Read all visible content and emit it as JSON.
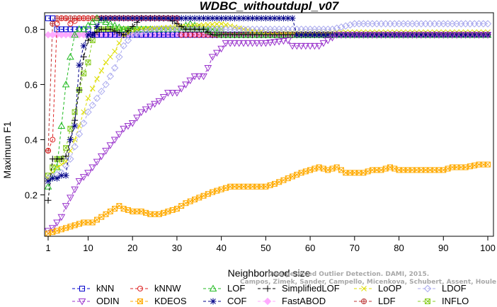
{
  "chart_data": {
    "type": "line",
    "title": "WDBC_withoutdupl_v07",
    "xlabel": "Neighborhood size",
    "ylabel": "Maximum F1",
    "xlim": [
      1,
      100
    ],
    "ylim": [
      0.05,
      0.86
    ],
    "xticks": [
      1,
      10,
      20,
      30,
      40,
      50,
      60,
      70,
      80,
      90,
      100
    ],
    "yticks": [
      0.2,
      0.4,
      0.6,
      0.8
    ],
    "watermark": [
      "Unsupervised Outlier Detection. DAMI, 2015.",
      "Campos, Zimek, Sander, Campello, Micenkova, Schubert, Assent, Houle"
    ],
    "series": [
      {
        "name": "kNN",
        "color": "#0000cc",
        "marker": "square",
        "points": [
          [
            1,
            0.84
          ],
          [
            2,
            0.84
          ],
          [
            3,
            0.8
          ],
          [
            10,
            0.8
          ],
          [
            11,
            0.78
          ],
          [
            100,
            0.78
          ]
        ]
      },
      {
        "name": "kNNW",
        "color": "#dd2222",
        "marker": "circle",
        "points": [
          [
            1,
            0.36
          ],
          [
            2,
            0.4
          ],
          [
            3,
            0.82
          ],
          [
            4,
            0.84
          ],
          [
            5,
            0.84
          ],
          [
            6,
            0.82
          ],
          [
            8,
            0.84
          ],
          [
            30,
            0.84
          ],
          [
            31,
            0.78
          ],
          [
            100,
            0.78
          ]
        ]
      },
      {
        "name": "LOF",
        "color": "#22bb22",
        "marker": "triangle",
        "points": [
          [
            1,
            0.23
          ],
          [
            2,
            0.27
          ],
          [
            3,
            0.3
          ],
          [
            4,
            0.45
          ],
          [
            5,
            0.6
          ],
          [
            6,
            0.7
          ],
          [
            7,
            0.78
          ],
          [
            8,
            0.8
          ],
          [
            9,
            0.8
          ],
          [
            12,
            0.84
          ],
          [
            15,
            0.82
          ],
          [
            18,
            0.8
          ],
          [
            30,
            0.8
          ],
          [
            33,
            0.82
          ],
          [
            36,
            0.8
          ],
          [
            40,
            0.78
          ],
          [
            100,
            0.78
          ]
        ]
      },
      {
        "name": "SimplifiedLOF",
        "color": "#000000",
        "marker": "plus",
        "points": [
          [
            1,
            0.18
          ],
          [
            2,
            0.33
          ],
          [
            3,
            0.33
          ],
          [
            4,
            0.33
          ],
          [
            5,
            0.34
          ],
          [
            6,
            0.4
          ],
          [
            7,
            0.47
          ],
          [
            8,
            0.58
          ],
          [
            9,
            0.7
          ],
          [
            10,
            0.76
          ],
          [
            11,
            0.78
          ],
          [
            13,
            0.8
          ],
          [
            15,
            0.8
          ],
          [
            18,
            0.78
          ],
          [
            22,
            0.84
          ],
          [
            28,
            0.84
          ],
          [
            32,
            0.8
          ],
          [
            36,
            0.8
          ],
          [
            38,
            0.78
          ],
          [
            100,
            0.78
          ]
        ]
      },
      {
        "name": "LoOP",
        "color": "#dddd00",
        "marker": "x",
        "points": [
          [
            1,
            0.26
          ],
          [
            3,
            0.3
          ],
          [
            5,
            0.32
          ],
          [
            7,
            0.4
          ],
          [
            9,
            0.5
          ],
          [
            10,
            0.55
          ],
          [
            12,
            0.62
          ],
          [
            14,
            0.68
          ],
          [
            16,
            0.72
          ],
          [
            18,
            0.78
          ],
          [
            22,
            0.8
          ],
          [
            40,
            0.82
          ],
          [
            45,
            0.8
          ],
          [
            50,
            0.79
          ],
          [
            100,
            0.79
          ]
        ]
      },
      {
        "name": "LDOF",
        "color": "#aaaaee",
        "marker": "diamond",
        "points": [
          [
            1,
            0.26
          ],
          [
            4,
            0.28
          ],
          [
            6,
            0.33
          ],
          [
            8,
            0.42
          ],
          [
            10,
            0.5
          ],
          [
            12,
            0.55
          ],
          [
            14,
            0.6
          ],
          [
            16,
            0.66
          ],
          [
            18,
            0.74
          ],
          [
            20,
            0.78
          ],
          [
            25,
            0.8
          ],
          [
            35,
            0.8
          ],
          [
            45,
            0.8
          ],
          [
            55,
            0.8
          ],
          [
            60,
            0.8
          ],
          [
            65,
            0.8
          ],
          [
            70,
            0.82
          ],
          [
            80,
            0.82
          ],
          [
            90,
            0.82
          ],
          [
            100,
            0.82
          ]
        ]
      },
      {
        "name": "ODIN",
        "color": "#9933cc",
        "marker": "triangle-down",
        "points": [
          [
            1,
            0.07
          ],
          [
            2,
            0.08
          ],
          [
            3,
            0.1
          ],
          [
            4,
            0.12
          ],
          [
            5,
            0.16
          ],
          [
            6,
            0.19
          ],
          [
            7,
            0.22
          ],
          [
            8,
            0.25
          ],
          [
            10,
            0.28
          ],
          [
            12,
            0.32
          ],
          [
            14,
            0.36
          ],
          [
            16,
            0.4
          ],
          [
            18,
            0.44
          ],
          [
            20,
            0.46
          ],
          [
            22,
            0.5
          ],
          [
            24,
            0.52
          ],
          [
            26,
            0.54
          ],
          [
            28,
            0.57
          ],
          [
            30,
            0.57
          ],
          [
            32,
            0.6
          ],
          [
            34,
            0.63
          ],
          [
            36,
            0.63
          ],
          [
            37,
            0.66
          ],
          [
            38,
            0.7
          ],
          [
            40,
            0.73
          ],
          [
            41,
            0.75
          ],
          [
            50,
            0.75
          ],
          [
            55,
            0.76
          ],
          [
            56,
            0.74
          ],
          [
            62,
            0.74
          ],
          [
            64,
            0.76
          ],
          [
            66,
            0.78
          ],
          [
            100,
            0.78
          ]
        ]
      },
      {
        "name": "KDEOS",
        "color": "#ffaa00",
        "marker": "square-x",
        "points": [
          [
            1,
            0.06
          ],
          [
            3,
            0.07
          ],
          [
            5,
            0.08
          ],
          [
            7,
            0.09
          ],
          [
            9,
            0.1
          ],
          [
            11,
            0.1
          ],
          [
            13,
            0.12
          ],
          [
            15,
            0.14
          ],
          [
            17,
            0.16
          ],
          [
            18,
            0.15
          ],
          [
            20,
            0.14
          ],
          [
            22,
            0.14
          ],
          [
            24,
            0.13
          ],
          [
            26,
            0.13
          ],
          [
            28,
            0.14
          ],
          [
            30,
            0.15
          ],
          [
            32,
            0.17
          ],
          [
            35,
            0.19
          ],
          [
            38,
            0.21
          ],
          [
            40,
            0.22
          ],
          [
            42,
            0.23
          ],
          [
            45,
            0.23
          ],
          [
            50,
            0.23
          ],
          [
            52,
            0.24
          ],
          [
            55,
            0.26
          ],
          [
            58,
            0.28
          ],
          [
            60,
            0.29
          ],
          [
            62,
            0.3
          ],
          [
            64,
            0.29
          ],
          [
            66,
            0.3
          ],
          [
            68,
            0.28
          ],
          [
            70,
            0.28
          ],
          [
            72,
            0.28
          ],
          [
            74,
            0.29
          ],
          [
            76,
            0.29
          ],
          [
            78,
            0.3
          ],
          [
            80,
            0.29
          ],
          [
            82,
            0.29
          ],
          [
            85,
            0.29
          ],
          [
            88,
            0.29
          ],
          [
            90,
            0.29
          ],
          [
            92,
            0.3
          ],
          [
            95,
            0.3
          ],
          [
            98,
            0.31
          ],
          [
            100,
            0.31
          ]
        ]
      },
      {
        "name": "COF",
        "color": "#000088",
        "marker": "asterisk",
        "points": [
          [
            1,
            0.25
          ],
          [
            2,
            0.26
          ],
          [
            3,
            0.26
          ],
          [
            4,
            0.27
          ],
          [
            5,
            0.27
          ],
          [
            6,
            0.4
          ],
          [
            7,
            0.45
          ],
          [
            8,
            0.67
          ],
          [
            9,
            0.74
          ],
          [
            10,
            0.78
          ],
          [
            11,
            0.78
          ],
          [
            13,
            0.84
          ],
          [
            20,
            0.84
          ],
          [
            25,
            0.84
          ],
          [
            30,
            0.84
          ],
          [
            40,
            0.84
          ],
          [
            50,
            0.84
          ],
          [
            56,
            0.84
          ],
          [
            57,
            0.78
          ],
          [
            100,
            0.78
          ]
        ]
      },
      {
        "name": "FastABOD",
        "color": "#ffaaff",
        "marker": "diamond-filled",
        "points": [
          [
            1,
            0.78
          ],
          [
            100,
            0.78
          ]
        ]
      },
      {
        "name": "LDF",
        "color": "#bb3333",
        "marker": "circle-plus",
        "points": [
          [
            1,
            0.36
          ],
          [
            2,
            0.82
          ],
          [
            3,
            0.84
          ],
          [
            4,
            0.84
          ],
          [
            5,
            0.84
          ],
          [
            30,
            0.84
          ],
          [
            31,
            0.78
          ],
          [
            100,
            0.78
          ]
        ]
      },
      {
        "name": "INFLO",
        "color": "#88cc22",
        "marker": "square-x2",
        "points": [
          [
            1,
            0.27
          ],
          [
            2,
            0.3
          ],
          [
            3,
            0.33
          ],
          [
            4,
            0.33
          ],
          [
            5,
            0.37
          ],
          [
            6,
            0.44
          ],
          [
            7,
            0.5
          ],
          [
            8,
            0.58
          ],
          [
            9,
            0.64
          ],
          [
            10,
            0.68
          ],
          [
            11,
            0.76
          ],
          [
            12,
            0.8
          ],
          [
            16,
            0.8
          ],
          [
            20,
            0.8
          ],
          [
            30,
            0.8
          ],
          [
            40,
            0.8
          ],
          [
            41,
            0.78
          ],
          [
            100,
            0.78
          ]
        ]
      }
    ]
  }
}
